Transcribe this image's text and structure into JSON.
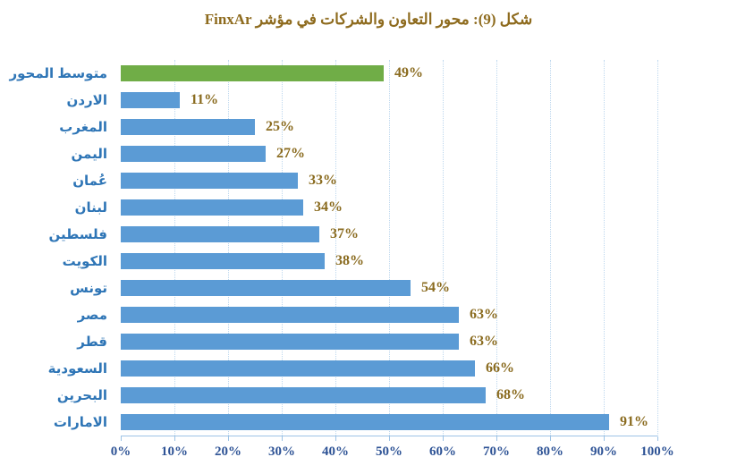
{
  "title": "شكل (9): محور التعاون والشركات في مؤشر FinxAr",
  "chart_data": {
    "type": "bar",
    "orientation": "horizontal",
    "title": "شكل (9): محور التعاون والشركات في مؤشر FinxAr",
    "categories": [
      "متوسط المحور",
      "الاردن",
      "المغرب",
      "اليمن",
      "عُمان",
      "لبنان",
      "فلسطين",
      "الكويت",
      "تونس",
      "مصر",
      "قطر",
      "السعودية",
      "البحرين",
      "الامارات"
    ],
    "values": [
      49,
      11,
      25,
      27,
      33,
      34,
      37,
      38,
      54,
      63,
      63,
      66,
      68,
      91
    ],
    "value_labels": [
      "49%",
      "11%",
      "25%",
      "27%",
      "33%",
      "34%",
      "37%",
      "38%",
      "54%",
      "63%",
      "63%",
      "66%",
      "68%",
      "91%"
    ],
    "x_ticks": [
      "0%",
      "10%",
      "20%",
      "30%",
      "40%",
      "50%",
      "60%",
      "70%",
      "80%",
      "90%",
      "100%"
    ],
    "xlim": [
      0,
      100
    ],
    "grid": "vertical-dotted",
    "legend": "none",
    "bar_color": "#5b9bd5",
    "highlight_color": "#70ad47",
    "highlight_category": "متوسط المحور",
    "title_color": "#8e6b1e",
    "category_label_color": "#2e75b6",
    "value_label_color": "#8a6b1f",
    "axis_label_color": "#2f5496",
    "gridline_color": "#bdd7ee",
    "axis_line_color": "#9dc3e6"
  }
}
